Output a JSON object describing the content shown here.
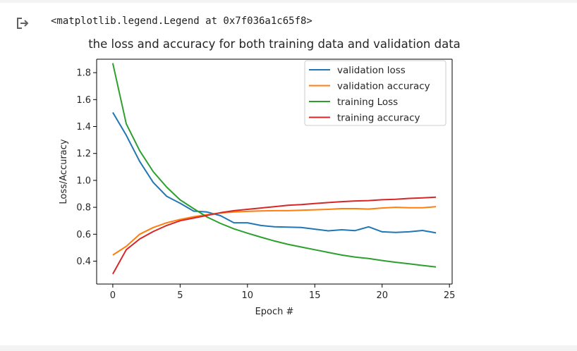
{
  "output": {
    "text": "<matplotlib.legend.Legend at 0x7f036a1c65f8>"
  },
  "icons": {
    "output": "output-arrow-icon"
  },
  "chart_data": {
    "type": "line",
    "title": "the loss and accuracy for both training data and validation data",
    "xlabel": "Epoch #",
    "ylabel": "Loss/Accuracy",
    "xlim": [
      -1.2,
      25.2
    ],
    "ylim": [
      0.23,
      1.9
    ],
    "xticks": [
      0,
      5,
      10,
      15,
      20,
      25
    ],
    "yticks": [
      0.4,
      0.6,
      0.8,
      1.0,
      1.2,
      1.4,
      1.6,
      1.8
    ],
    "ytick_labels": [
      "0.4",
      "0.6",
      "0.8",
      "1.0",
      "1.2",
      "1.4",
      "1.6",
      "1.8"
    ],
    "grid": false,
    "legend_position": "top-right",
    "x": [
      0,
      1,
      2,
      3,
      4,
      5,
      6,
      7,
      8,
      9,
      10,
      11,
      12,
      13,
      14,
      15,
      16,
      17,
      18,
      19,
      20,
      21,
      22,
      23,
      24
    ],
    "series": [
      {
        "name": "validation loss",
        "color": "#1f77b4",
        "values": [
          1.505,
          1.335,
          1.14,
          0.985,
          0.882,
          0.83,
          0.772,
          0.765,
          0.738,
          0.685,
          0.685,
          0.665,
          0.655,
          0.653,
          0.65,
          0.638,
          0.625,
          0.633,
          0.627,
          0.655,
          0.618,
          0.613,
          0.618,
          0.628,
          0.61
        ]
      },
      {
        "name": "validation accuracy",
        "color": "#ff7f0e",
        "values": [
          0.445,
          0.51,
          0.6,
          0.65,
          0.685,
          0.71,
          0.73,
          0.745,
          0.758,
          0.765,
          0.77,
          0.773,
          0.775,
          0.775,
          0.778,
          0.782,
          0.785,
          0.79,
          0.79,
          0.787,
          0.795,
          0.8,
          0.797,
          0.797,
          0.805
        ]
      },
      {
        "name": "training Loss",
        "color": "#2ca02c",
        "values": [
          1.87,
          1.42,
          1.22,
          1.065,
          0.95,
          0.855,
          0.79,
          0.728,
          0.68,
          0.64,
          0.608,
          0.578,
          0.55,
          0.525,
          0.505,
          0.485,
          0.465,
          0.445,
          0.43,
          0.42,
          0.405,
          0.392,
          0.38,
          0.368,
          0.357
        ]
      },
      {
        "name": "training accuracy",
        "color": "#d62728",
        "values": [
          0.305,
          0.485,
          0.565,
          0.62,
          0.665,
          0.7,
          0.72,
          0.74,
          0.76,
          0.775,
          0.785,
          0.795,
          0.805,
          0.815,
          0.82,
          0.828,
          0.835,
          0.842,
          0.847,
          0.85,
          0.856,
          0.86,
          0.866,
          0.87,
          0.875
        ]
      }
    ]
  }
}
